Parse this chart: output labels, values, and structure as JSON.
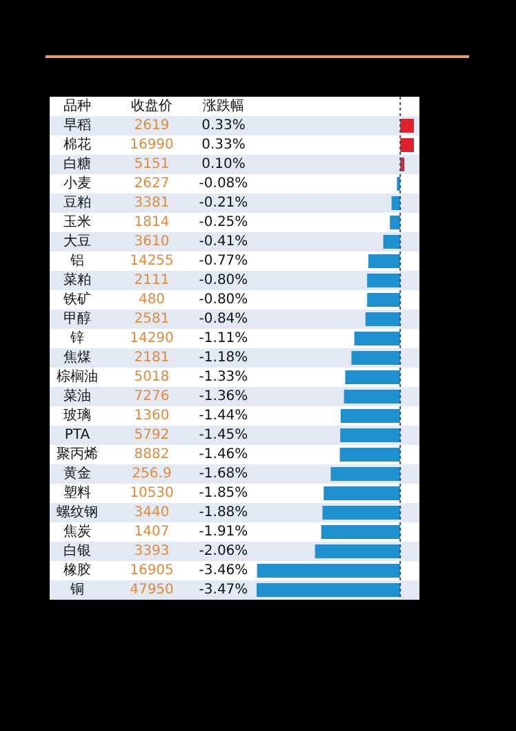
{
  "chart_data": {
    "type": "bar",
    "orientation": "horizontal",
    "annotations": [
      "品种",
      "收盘价",
      "涨跌幅",
      "2619",
      "16990",
      "5151",
      "2627",
      "3381",
      "1814",
      "3610",
      "14255",
      "2111",
      "480",
      "2581",
      "14290",
      "2181",
      "5018",
      "7276",
      "1360",
      "5792",
      "8882",
      "256.9",
      "10530",
      "3440",
      "1407",
      "3393",
      "16905",
      "47950"
    ],
    "categories": [
      "早稻",
      "棉花",
      "白糖",
      "小麦",
      "豆粕",
      "玉米",
      "大豆",
      "铝",
      "菜粕",
      "铁矿",
      "甲醇",
      "锌",
      "焦煤",
      "棕榈油",
      "菜油",
      "玻璃",
      "PTA",
      "聚丙烯",
      "黄金",
      "塑料",
      "螺纹钢",
      "焦炭",
      "白银",
      "橡胶",
      "铜"
    ],
    "values": [
      0.33,
      0.33,
      0.1,
      -0.08,
      -0.21,
      -0.25,
      -0.41,
      -0.77,
      -0.8,
      -0.8,
      -0.84,
      -1.11,
      -1.18,
      -1.33,
      -1.36,
      -1.44,
      -1.45,
      -1.46,
      -1.68,
      -1.85,
      -1.88,
      -1.91,
      -2.06,
      -3.46,
      -3.47
    ],
    "value_labels": [
      "0.33%",
      "0.33%",
      "0.10%",
      "-0.08%",
      "-0.21%",
      "-0.25%",
      "-0.41%",
      "-0.77%",
      "-0.80%",
      "-0.80%",
      "-0.84%",
      "-1.11%",
      "-1.18%",
      "-1.33%",
      "-1.36%",
      "-1.44%",
      "-1.45%",
      "-1.46%",
      "-1.68%",
      "-1.85%",
      "-1.88%",
      "-1.91%",
      "-2.06%",
      "-3.46%",
      "-3.47%"
    ],
    "colors": [
      "#e0202a",
      "#e0202a",
      "#c0304a",
      "#1e90d0",
      "#1e90d0",
      "#1e90d0",
      "#1e90d0",
      "#1e90d0",
      "#1e90d0",
      "#1e90d0",
      "#1e90d0",
      "#1e90d0",
      "#1e90d0",
      "#1e90d0",
      "#1e90d0",
      "#1e90d0",
      "#1e90d0",
      "#1e90d0",
      "#1e90d0",
      "#1e90d0",
      "#1e90d0",
      "#1e90d0",
      "#1e90d0",
      "#1e90d0",
      "#1e90d0"
    ],
    "ref_lines": [
      {
        "axis": "x",
        "value": 0,
        "color": "#444455",
        "line_style": "dashed"
      }
    ]
  }
}
